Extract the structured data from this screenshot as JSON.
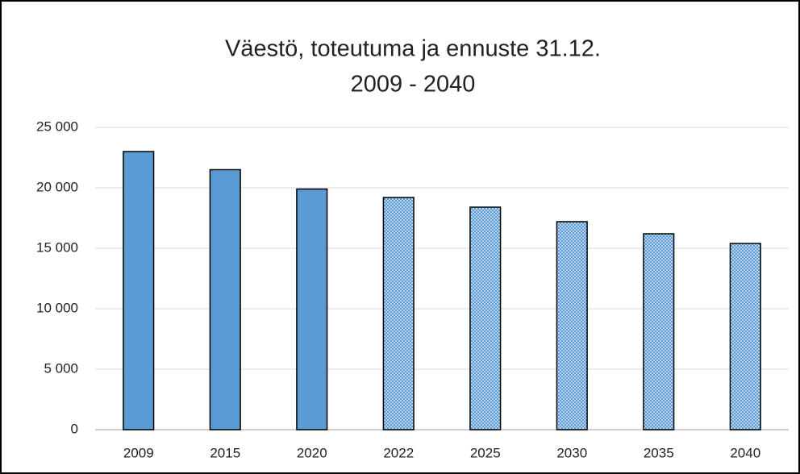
{
  "chart_data": {
    "type": "bar",
    "title": "Väestö, toteutuma ja ennuste 31.12.",
    "subtitle": "2009 - 2040",
    "categories": [
      "2009",
      "2015",
      "2020",
      "2022",
      "2025",
      "2030",
      "2035",
      "2040"
    ],
    "values": [
      23000,
      21500,
      19900,
      19200,
      18400,
      17200,
      16200,
      15400
    ],
    "fills": [
      "solid",
      "solid",
      "solid",
      "dotted",
      "dotted",
      "dotted",
      "dotted",
      "dotted"
    ],
    "color": "#5b9bd5",
    "ylim": [
      0,
      25000
    ],
    "yticks": [
      0,
      {
        "value": 5000,
        "label": "5 000"
      },
      {
        "value": 10000,
        "label": "10 000"
      },
      {
        "value": 15000,
        "label": "15 000"
      },
      {
        "value": 20000,
        "label": "20 000"
      },
      {
        "value": 25000,
        "label": "25 000"
      }
    ],
    "grid": true
  }
}
